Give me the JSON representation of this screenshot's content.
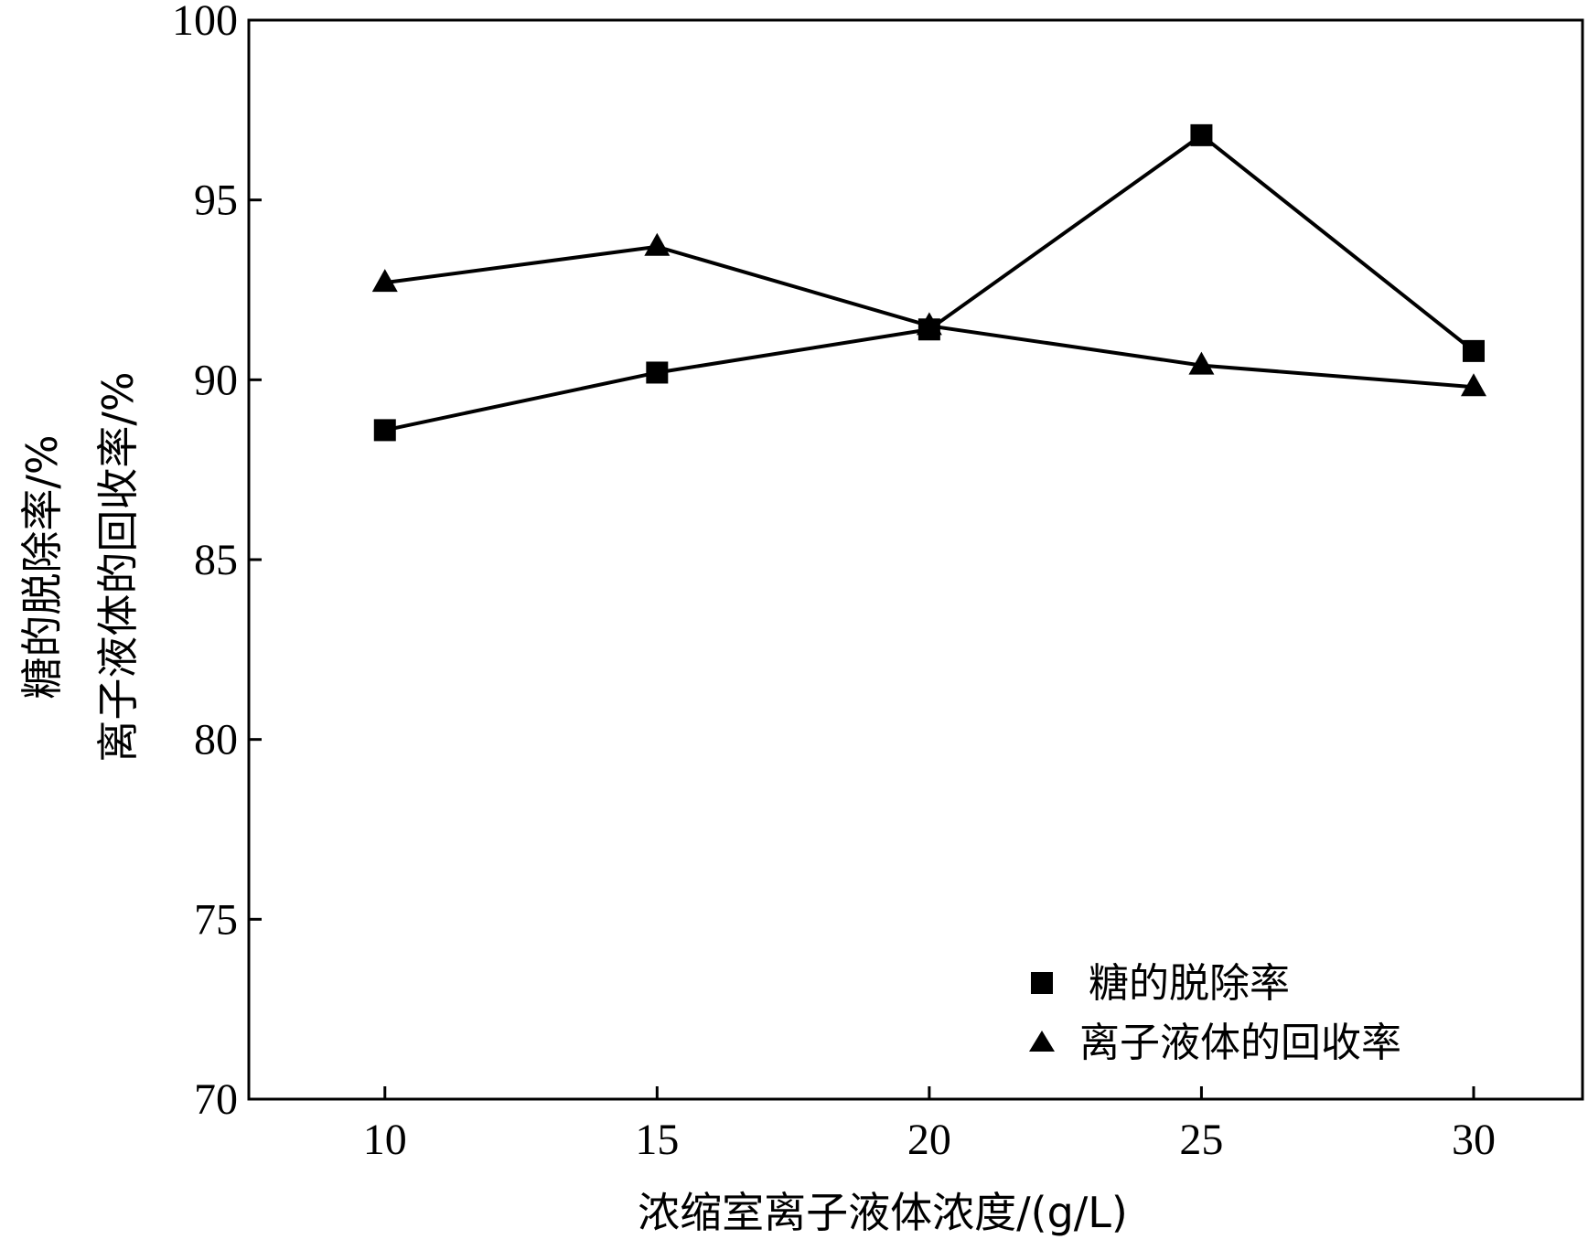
{
  "chart_data": {
    "type": "line",
    "x": [
      10,
      15,
      20,
      25,
      30
    ],
    "xlim": [
      7.5,
      32
    ],
    "ylim": [
      70,
      100
    ],
    "xticks": [
      10,
      15,
      20,
      25,
      30
    ],
    "yticks": [
      70,
      75,
      80,
      85,
      90,
      95,
      100
    ],
    "xlabel": "浓缩室离子液体浓度/(g/L)",
    "ylabel_lines": [
      "糖的脱除率/%",
      "离子液体的回收率/%"
    ],
    "grid": false,
    "legend_position": "bottom-right",
    "series": [
      {
        "name": "糖的脱除率",
        "marker": "square",
        "color": "#000000",
        "values": [
          88.6,
          90.2,
          91.4,
          96.8,
          90.8
        ]
      },
      {
        "name": "离子液体的回收率",
        "marker": "triangle",
        "color": "#000000",
        "values": [
          92.7,
          93.7,
          91.5,
          90.4,
          89.8
        ]
      }
    ]
  }
}
